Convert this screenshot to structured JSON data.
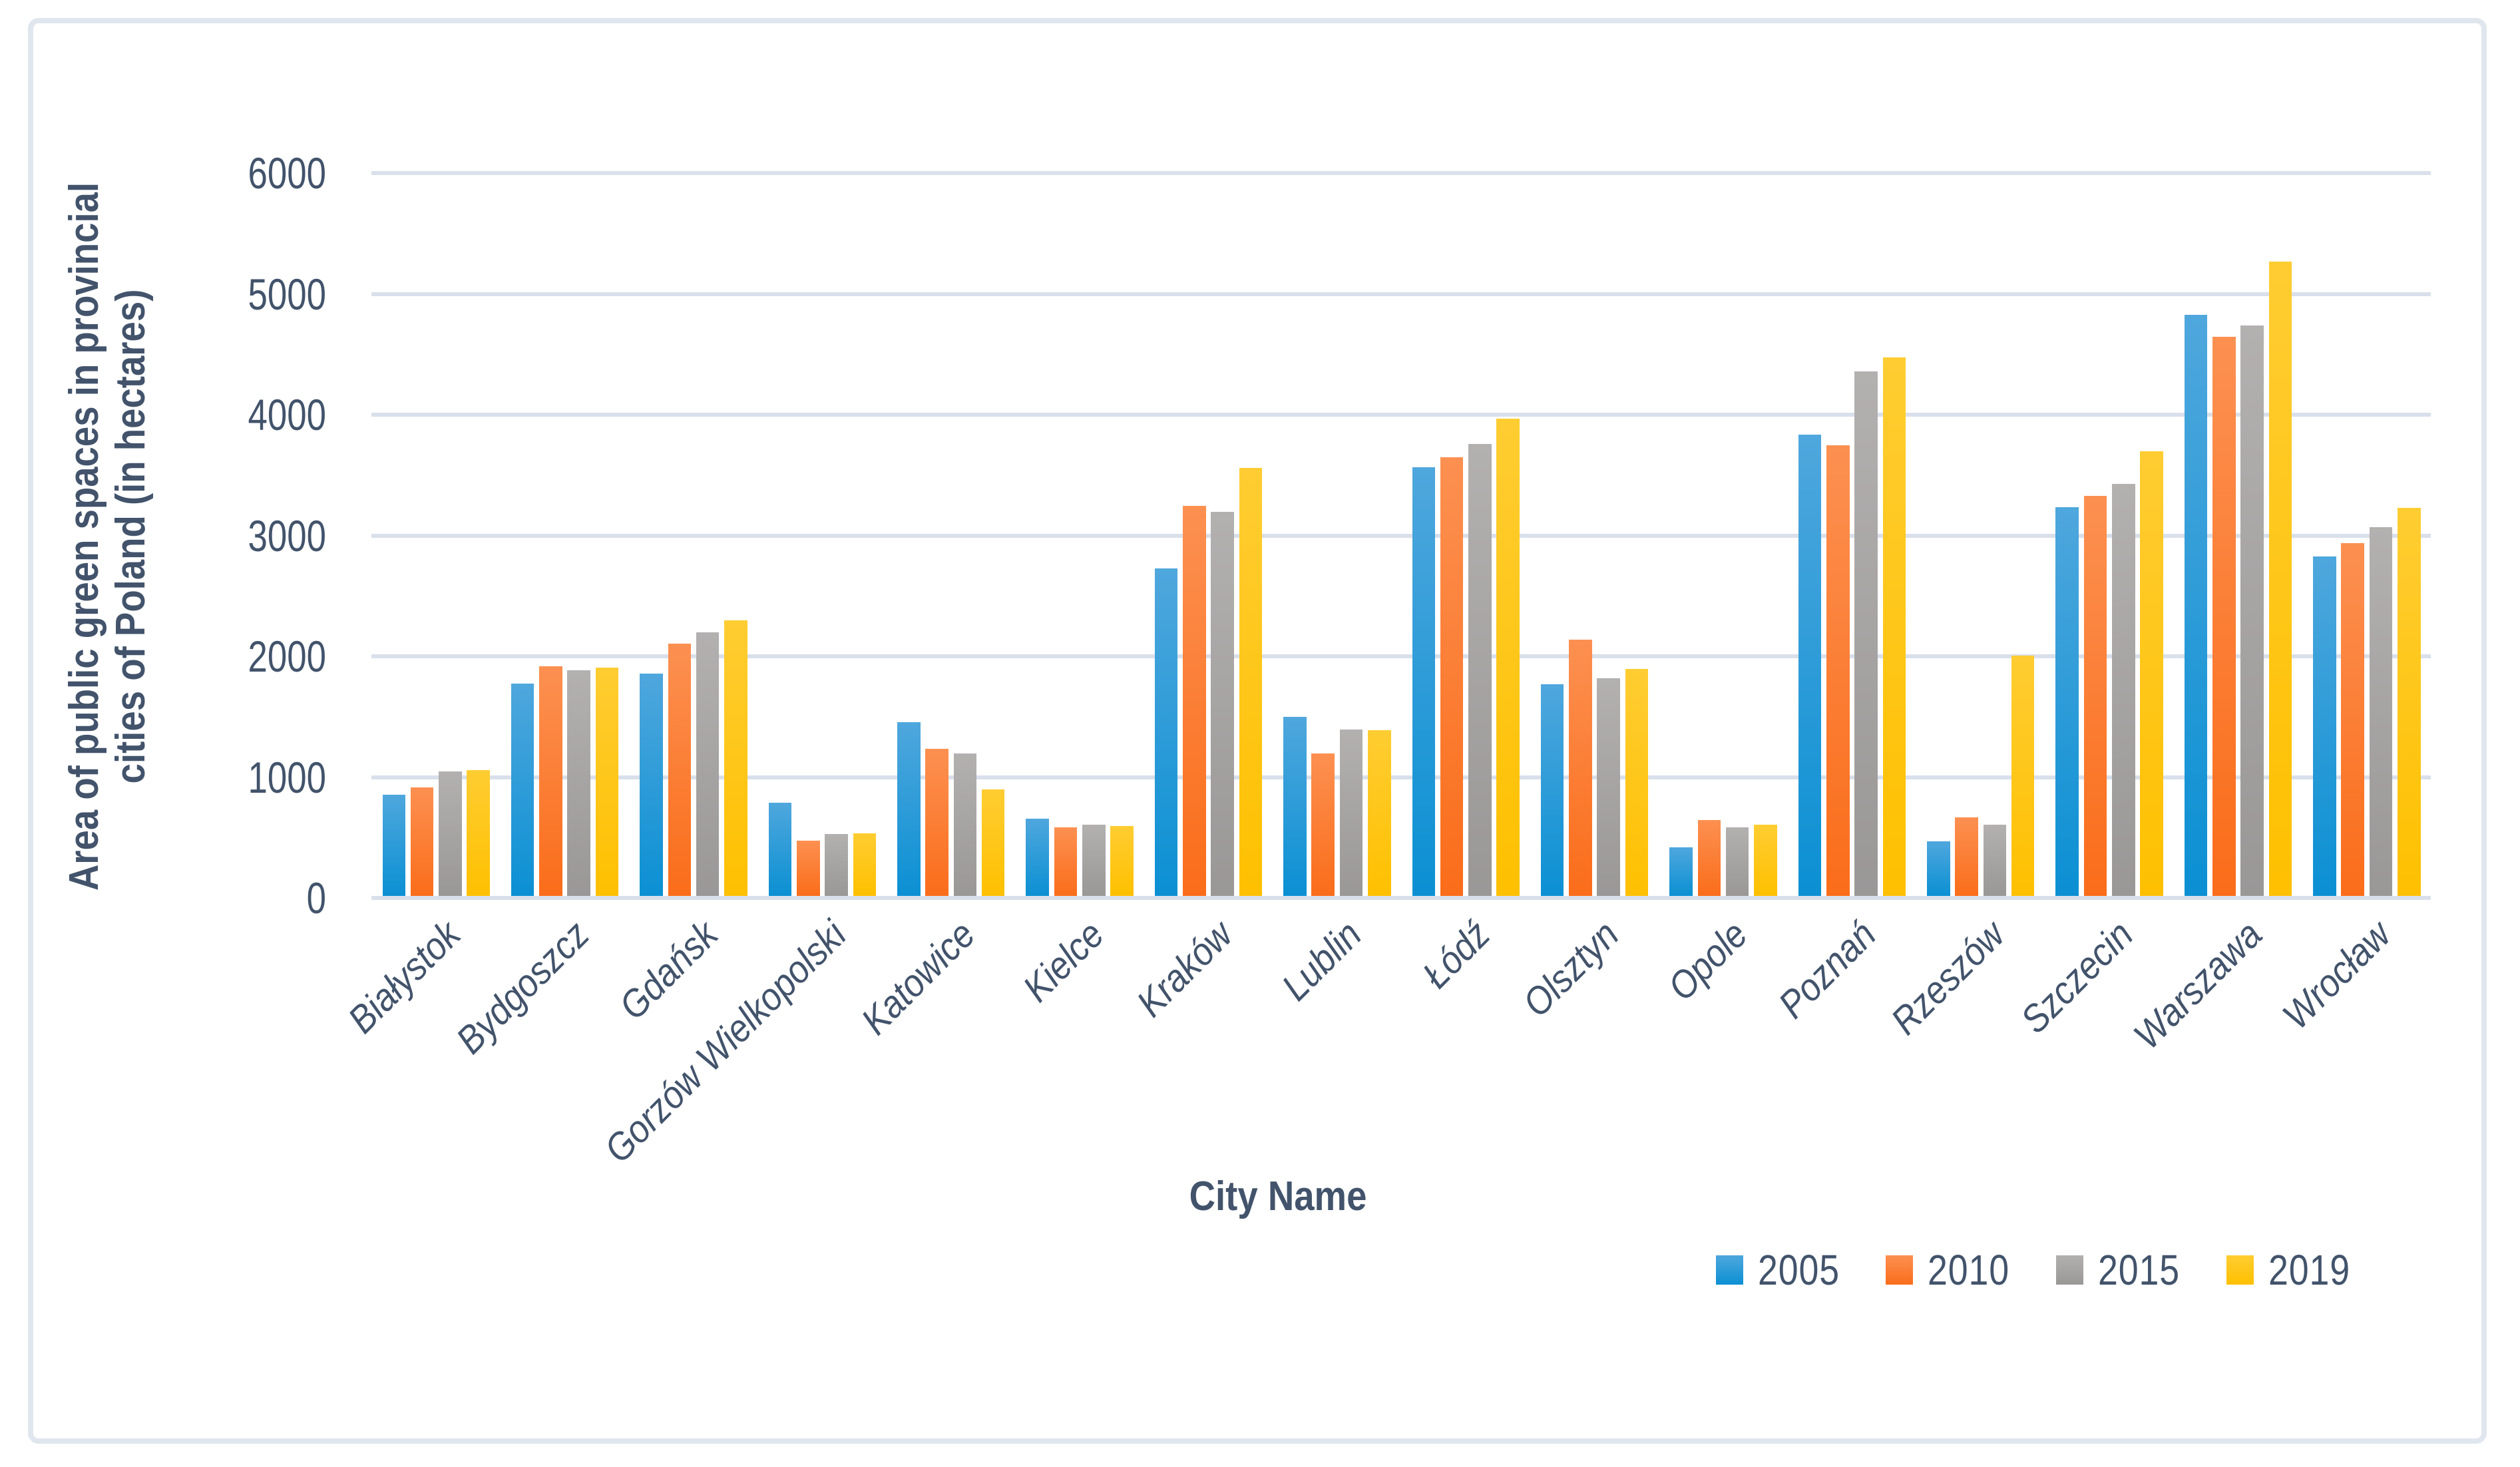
{
  "chart_data": {
    "type": "bar",
    "title": "",
    "xlabel": "City Name",
    "ylabel": "Area of public green spaces in provincial cities of Poland (in hectares)",
    "ylabel_lines": [
      "Area of public green spaces in provincial",
      "cities of Poland (in hectares)"
    ],
    "ylim": [
      0,
      6000
    ],
    "yticks": [
      0,
      1000,
      2000,
      3000,
      4000,
      5000,
      6000
    ],
    "grid": true,
    "legend_position": "bottom-right",
    "categories": [
      "Białystok",
      "Bydgoszcz",
      "Gdańsk",
      "Gorzów Wielkopolski",
      "Katowice",
      "Kielce",
      "Kraków",
      "Lublin",
      "Łódź",
      "Olsztyn",
      "Opole",
      "Poznań",
      "Rzeszów",
      "Szczecin",
      "Warszawa",
      "Wrocław"
    ],
    "series": [
      {
        "name": "2005",
        "color_top": "#4FA7DD",
        "color_bottom": "#0B90D3",
        "values": [
          840,
          1760,
          1840,
          770,
          1440,
          640,
          2710,
          1480,
          3550,
          1750,
          400,
          3820,
          450,
          3220,
          4810,
          2810
        ]
      },
      {
        "name": "2010",
        "color_top": "#FC9051",
        "color_bottom": "#FA6D1A",
        "values": [
          900,
          1900,
          2090,
          460,
          1220,
          570,
          3230,
          1180,
          3630,
          2120,
          630,
          3730,
          650,
          3310,
          4630,
          2920
        ]
      },
      {
        "name": "2015",
        "color_top": "#B3B0B0",
        "color_bottom": "#9A9797",
        "values": [
          1030,
          1870,
          2180,
          510,
          1180,
          590,
          3180,
          1380,
          3740,
          1800,
          570,
          4340,
          590,
          3410,
          4720,
          3050
        ]
      },
      {
        "name": "2019",
        "color_top": "#FFCD32",
        "color_bottom": "#FEC000",
        "values": [
          1040,
          1890,
          2280,
          520,
          880,
          580,
          3540,
          1370,
          3950,
          1880,
          590,
          4460,
          1990,
          3680,
          5250,
          3210
        ]
      }
    ],
    "style": {
      "grid_color": "#D9E0EB",
      "text_color": "#42536B",
      "border_color": "#E0E6EE",
      "background": "#FFFFFF"
    }
  }
}
